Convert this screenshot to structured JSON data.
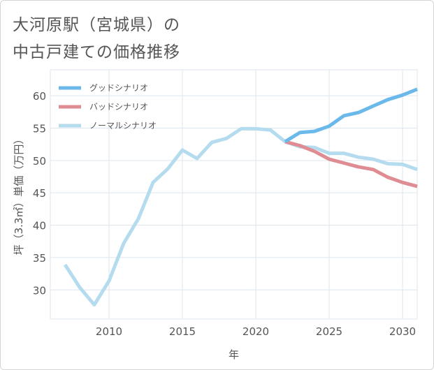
{
  "title": {
    "line1": "大河原駅（宮城県）の",
    "line2": "中古戸建ての価格推移"
  },
  "chart_data": {
    "type": "line",
    "xlabel": "年",
    "ylabel": "坪（3.3㎡）単価（万円）",
    "xlim": [
      2006,
      2031
    ],
    "ylim": [
      25.5,
      64
    ],
    "x_ticks": [
      2010,
      2015,
      2020,
      2025,
      2030
    ],
    "y_ticks": [
      30,
      35,
      40,
      45,
      50,
      55,
      60
    ],
    "grid": true,
    "legend_position": "top-left",
    "series": [
      {
        "name": "グッドシナリオ",
        "color": "#6bb8ea",
        "x": [
          2022,
          2023,
          2024,
          2025,
          2026,
          2027,
          2028,
          2029,
          2030,
          2031
        ],
        "y": [
          52.9,
          54.3,
          54.5,
          55.3,
          56.9,
          57.4,
          58.4,
          59.4,
          60.1,
          61.0
        ]
      },
      {
        "name": "バッドシナリオ",
        "color": "#df8c93",
        "x": [
          2022,
          2023,
          2024,
          2025,
          2026,
          2027,
          2028,
          2029,
          2030,
          2031
        ],
        "y": [
          52.9,
          52.3,
          51.4,
          50.2,
          49.6,
          49.0,
          48.6,
          47.4,
          46.6,
          46.0
        ]
      },
      {
        "name": "ノーマルシナリオ",
        "color": "#b5dcee",
        "x": [
          2007,
          2008,
          2009,
          2010,
          2011,
          2012,
          2013,
          2014,
          2015,
          2016,
          2017,
          2018,
          2019,
          2020,
          2021,
          2022,
          2023,
          2024,
          2025,
          2026,
          2027,
          2028,
          2029,
          2030,
          2031
        ],
        "y": [
          33.9,
          30.4,
          27.7,
          31.4,
          37.2,
          41.0,
          46.6,
          48.7,
          51.6,
          50.3,
          52.8,
          53.4,
          54.9,
          54.9,
          54.7,
          52.9,
          52.1,
          52.0,
          51.1,
          51.1,
          50.5,
          50.2,
          49.5,
          49.4,
          48.6
        ]
      }
    ]
  }
}
